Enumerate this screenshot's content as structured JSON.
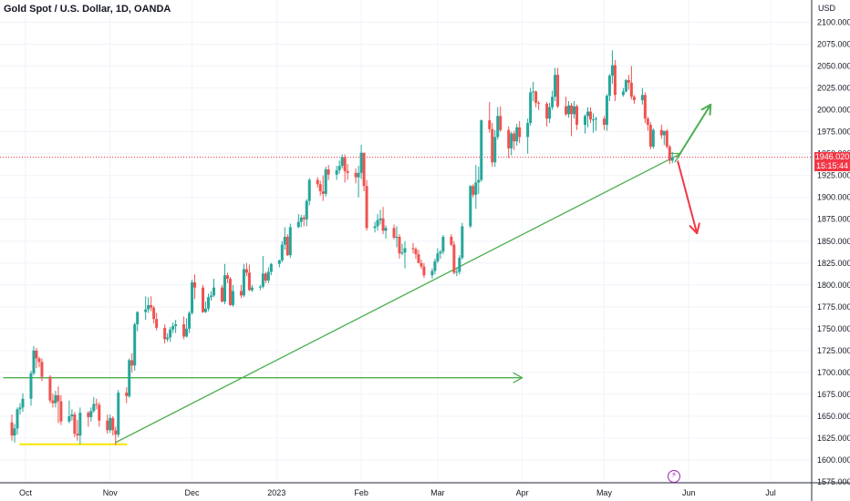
{
  "header": {
    "title": "Gold Spot / U.S. Dollar, 1D, OANDA",
    "currency": "USD"
  },
  "price_tag": {
    "price": "1946.020",
    "countdown": "15:15:44"
  },
  "event_icon": "lightning-icon",
  "colors": {
    "up": "#26a69a",
    "down": "#ef5350",
    "grid": "#f0f3fa",
    "trendline": "#4caf50",
    "yellow_line": "#f7e600",
    "bear_arrow": "#f23645",
    "price_line": "#f23645",
    "axis_text": "#131722"
  },
  "chart_data": {
    "type": "candlestick",
    "y_axis": {
      "label": "USD",
      "ylim": [
        1575,
        2125
      ],
      "position": "right",
      "ticks": [
        1575,
        1600,
        1625,
        1650,
        1675,
        1700,
        1725,
        1750,
        1775,
        1800,
        1825,
        1850,
        1875,
        1900,
        1925,
        1950,
        1975,
        2000,
        2025,
        2050,
        2075,
        2100
      ],
      "tick_labels": [
        "1575.000",
        "1600.000",
        "1625.000",
        "1650.000",
        "1675.000",
        "1700.000",
        "1725.000",
        "1750.000",
        "1775.000",
        "1800.000",
        "1825.000",
        "1850.000",
        "1875.000",
        "1900.000",
        "1925.000",
        "1950.000",
        "1975.000",
        "2000.000",
        "2025.000",
        "2050.000",
        "2075.000",
        "2100.000"
      ]
    },
    "x_axis": {
      "range": [
        "2022-09-26",
        "2023-07-20"
      ],
      "ticks": [
        {
          "date": "2022-10-01",
          "label": "Oct"
        },
        {
          "date": "2022-11-01",
          "label": "Nov"
        },
        {
          "date": "2022-12-01",
          "label": "Dec"
        },
        {
          "date": "2023-01-01",
          "label": "2023"
        },
        {
          "date": "2023-02-01",
          "label": "Feb"
        },
        {
          "date": "2023-03-01",
          "label": "Mar"
        },
        {
          "date": "2023-04-01",
          "label": "Apr"
        },
        {
          "date": "2023-05-01",
          "label": "May"
        },
        {
          "date": "2023-06-01",
          "label": "Jun"
        },
        {
          "date": "2023-07-01",
          "label": "Jul"
        }
      ]
    },
    "grid": true,
    "last_price": 1946.02,
    "candles": [
      [
        "2022-09-26",
        1643,
        1652,
        1622,
        1628
      ],
      [
        "2022-09-27",
        1628,
        1641,
        1620,
        1636
      ],
      [
        "2022-09-28",
        1636,
        1660,
        1629,
        1658
      ],
      [
        "2022-09-29",
        1658,
        1665,
        1652,
        1660
      ],
      [
        "2022-09-30",
        1660,
        1676,
        1655,
        1670
      ],
      [
        "2022-10-03",
        1670,
        1702,
        1662,
        1699
      ],
      [
        "2022-10-04",
        1699,
        1730,
        1697,
        1725
      ],
      [
        "2022-10-05",
        1725,
        1728,
        1705,
        1716
      ],
      [
        "2022-10-06",
        1716,
        1718,
        1706,
        1712
      ],
      [
        "2022-10-07",
        1712,
        1716,
        1690,
        1695
      ],
      [
        "2022-10-10",
        1695,
        1697,
        1665,
        1668
      ],
      [
        "2022-10-11",
        1668,
        1676,
        1660,
        1665
      ],
      [
        "2022-10-12",
        1665,
        1679,
        1660,
        1674
      ],
      [
        "2022-10-13",
        1674,
        1684,
        1642,
        1667
      ],
      [
        "2022-10-14",
        1667,
        1674,
        1640,
        1644
      ],
      [
        "2022-10-17",
        1644,
        1668,
        1642,
        1650
      ],
      [
        "2022-10-18",
        1650,
        1658,
        1645,
        1652
      ],
      [
        "2022-10-19",
        1652,
        1655,
        1626,
        1630
      ],
      [
        "2022-10-20",
        1630,
        1646,
        1622,
        1628
      ],
      [
        "2022-10-21",
        1628,
        1660,
        1618,
        1654
      ],
      [
        "2022-10-24",
        1654,
        1656,
        1638,
        1649
      ],
      [
        "2022-10-25",
        1649,
        1660,
        1644,
        1656
      ],
      [
        "2022-10-26",
        1656,
        1672,
        1654,
        1664
      ],
      [
        "2022-10-27",
        1664,
        1670,
        1658,
        1663
      ],
      [
        "2022-10-28",
        1663,
        1666,
        1638,
        1645
      ],
      [
        "2022-10-31",
        1645,
        1652,
        1630,
        1634
      ],
      [
        "2022-11-01",
        1634,
        1652,
        1631,
        1648
      ],
      [
        "2022-11-02",
        1648,
        1650,
        1628,
        1634
      ],
      [
        "2022-11-03",
        1634,
        1638,
        1617,
        1629
      ],
      [
        "2022-11-04",
        1629,
        1680,
        1626,
        1677
      ],
      [
        "2022-11-07",
        1677,
        1683,
        1665,
        1673
      ],
      [
        "2022-11-08",
        1673,
        1716,
        1671,
        1714
      ],
      [
        "2022-11-09",
        1714,
        1722,
        1700,
        1708
      ],
      [
        "2022-11-10",
        1708,
        1757,
        1702,
        1755
      ],
      [
        "2022-11-11",
        1755,
        1770,
        1747,
        1769
      ],
      [
        "2022-11-14",
        1769,
        1787,
        1760,
        1772
      ],
      [
        "2022-11-15",
        1772,
        1786,
        1768,
        1777
      ],
      [
        "2022-11-16",
        1777,
        1787,
        1770,
        1774
      ],
      [
        "2022-11-17",
        1774,
        1776,
        1756,
        1761
      ],
      [
        "2022-11-18",
        1761,
        1768,
        1748,
        1751
      ],
      [
        "2022-11-21",
        1751,
        1755,
        1733,
        1738
      ],
      [
        "2022-11-22",
        1738,
        1745,
        1735,
        1740
      ],
      [
        "2022-11-23",
        1740,
        1752,
        1735,
        1749
      ],
      [
        "2022-11-24",
        1749,
        1757,
        1745,
        1753
      ],
      [
        "2022-11-25",
        1753,
        1760,
        1745,
        1755
      ],
      [
        "2022-11-28",
        1755,
        1764,
        1738,
        1741
      ],
      [
        "2022-11-29",
        1741,
        1762,
        1740,
        1750
      ],
      [
        "2022-11-30",
        1750,
        1770,
        1745,
        1768
      ],
      [
        "2022-12-01",
        1768,
        1806,
        1766,
        1803
      ],
      [
        "2022-12-02",
        1803,
        1812,
        1784,
        1797
      ],
      [
        "2022-12-05",
        1797,
        1800,
        1768,
        1769
      ],
      [
        "2022-12-06",
        1769,
        1781,
        1768,
        1773
      ],
      [
        "2022-12-07",
        1773,
        1790,
        1770,
        1786
      ],
      [
        "2022-12-08",
        1786,
        1793,
        1782,
        1788
      ],
      [
        "2022-12-09",
        1788,
        1807,
        1786,
        1797
      ],
      [
        "2022-12-12",
        1797,
        1800,
        1780,
        1781
      ],
      [
        "2022-12-13",
        1781,
        1824,
        1778,
        1811
      ],
      [
        "2022-12-14",
        1811,
        1814,
        1802,
        1807
      ],
      [
        "2022-12-15",
        1807,
        1809,
        1776,
        1777
      ],
      [
        "2022-12-16",
        1777,
        1800,
        1775,
        1793
      ],
      [
        "2022-12-19",
        1793,
        1800,
        1785,
        1788
      ],
      [
        "2022-12-20",
        1788,
        1824,
        1786,
        1818
      ],
      [
        "2022-12-21",
        1818,
        1825,
        1810,
        1814
      ],
      [
        "2022-12-22",
        1814,
        1823,
        1793,
        1794
      ],
      [
        "2022-12-23",
        1794,
        1800,
        1792,
        1797
      ],
      [
        "2022-12-26",
        1797,
        1800,
        1794,
        1798
      ],
      [
        "2022-12-27",
        1798,
        1833,
        1796,
        1813
      ],
      [
        "2022-12-28",
        1813,
        1815,
        1802,
        1805
      ],
      [
        "2022-12-29",
        1805,
        1820,
        1802,
        1815
      ],
      [
        "2022-12-30",
        1815,
        1825,
        1811,
        1824
      ],
      [
        "2023-01-02",
        1824,
        1829,
        1820,
        1828
      ],
      [
        "2023-01-03",
        1828,
        1850,
        1826,
        1846
      ],
      [
        "2023-01-04",
        1846,
        1866,
        1840,
        1855
      ],
      [
        "2023-01-05",
        1855,
        1858,
        1833,
        1834
      ],
      [
        "2023-01-06",
        1834,
        1870,
        1831,
        1866
      ],
      [
        "2023-01-09",
        1866,
        1881,
        1865,
        1872
      ],
      [
        "2023-01-10",
        1872,
        1880,
        1866,
        1877
      ],
      [
        "2023-01-11",
        1877,
        1880,
        1867,
        1875
      ],
      [
        "2023-01-12",
        1875,
        1898,
        1867,
        1896
      ],
      [
        "2023-01-13",
        1896,
        1922,
        1891,
        1920
      ],
      [
        "2023-01-16",
        1920,
        1923,
        1911,
        1915
      ],
      [
        "2023-01-17",
        1915,
        1919,
        1902,
        1907
      ],
      [
        "2023-01-18",
        1907,
        1925,
        1896,
        1904
      ],
      [
        "2023-01-19",
        1904,
        1935,
        1901,
        1932
      ],
      [
        "2023-01-20",
        1932,
        1937,
        1920,
        1926
      ],
      [
        "2023-01-23",
        1926,
        1936,
        1920,
        1931
      ],
      [
        "2023-01-24",
        1931,
        1942,
        1927,
        1936
      ],
      [
        "2023-01-25",
        1936,
        1949,
        1933,
        1946
      ],
      [
        "2023-01-26",
        1946,
        1949,
        1917,
        1930
      ],
      [
        "2023-01-27",
        1930,
        1938,
        1920,
        1928
      ],
      [
        "2023-01-30",
        1928,
        1933,
        1916,
        1923
      ],
      [
        "2023-01-31",
        1923,
        1936,
        1900,
        1928
      ],
      [
        "2023-02-01",
        1928,
        1960,
        1921,
        1951
      ],
      [
        "2023-02-02",
        1951,
        1951,
        1907,
        1913
      ],
      [
        "2023-02-03",
        1913,
        1920,
        1862,
        1865
      ],
      [
        "2023-02-06",
        1865,
        1872,
        1860,
        1867
      ],
      [
        "2023-02-07",
        1867,
        1881,
        1862,
        1874
      ],
      [
        "2023-02-08",
        1874,
        1886,
        1869,
        1876
      ],
      [
        "2023-02-09",
        1876,
        1889,
        1858,
        1862
      ],
      [
        "2023-02-10",
        1862,
        1868,
        1853,
        1865
      ],
      [
        "2023-02-13",
        1865,
        1869,
        1852,
        1854
      ],
      [
        "2023-02-14",
        1854,
        1867,
        1843,
        1855
      ],
      [
        "2023-02-15",
        1855,
        1858,
        1830,
        1836
      ],
      [
        "2023-02-16",
        1836,
        1847,
        1834,
        1837
      ],
      [
        "2023-02-17",
        1837,
        1850,
        1819,
        1842
      ],
      [
        "2023-02-20",
        1842,
        1848,
        1836,
        1841
      ],
      [
        "2023-02-21",
        1841,
        1843,
        1830,
        1835
      ],
      [
        "2023-02-22",
        1835,
        1840,
        1825,
        1825
      ],
      [
        "2023-02-23",
        1825,
        1829,
        1818,
        1821
      ],
      [
        "2023-02-24",
        1821,
        1825,
        1808,
        1811
      ],
      [
        "2023-02-27",
        1811,
        1819,
        1807,
        1816
      ],
      [
        "2023-02-28",
        1816,
        1830,
        1812,
        1827
      ],
      [
        "2023-03-01",
        1827,
        1842,
        1825,
        1836
      ],
      [
        "2023-03-02",
        1836,
        1840,
        1830,
        1838
      ],
      [
        "2023-03-03",
        1838,
        1857,
        1835,
        1855
      ],
      [
        "2023-03-06",
        1855,
        1858,
        1844,
        1846
      ],
      [
        "2023-03-07",
        1846,
        1850,
        1812,
        1814
      ],
      [
        "2023-03-08",
        1814,
        1820,
        1810,
        1815
      ],
      [
        "2023-03-09",
        1815,
        1834,
        1812,
        1831
      ],
      [
        "2023-03-10",
        1831,
        1871,
        1829,
        1867
      ],
      [
        "2023-03-13",
        1867,
        1914,
        1865,
        1913
      ],
      [
        "2023-03-14",
        1913,
        1915,
        1900,
        1903
      ],
      [
        "2023-03-15",
        1903,
        1937,
        1887,
        1917
      ],
      [
        "2023-03-16",
        1917,
        1935,
        1904,
        1920
      ],
      [
        "2023-03-17",
        1920,
        1989,
        1918,
        1988
      ],
      [
        "2023-03-20",
        1988,
        2009,
        1974,
        1978
      ],
      [
        "2023-03-21",
        1978,
        1985,
        1935,
        1940
      ],
      [
        "2023-03-22",
        1940,
        1977,
        1935,
        1969
      ],
      [
        "2023-03-23",
        1969,
        2003,
        1966,
        1993
      ],
      [
        "2023-03-24",
        1993,
        2004,
        1975,
        1977
      ],
      [
        "2023-03-27",
        1977,
        1981,
        1945,
        1956
      ],
      [
        "2023-03-28",
        1956,
        1975,
        1948,
        1973
      ],
      [
        "2023-03-29",
        1973,
        1976,
        1954,
        1964
      ],
      [
        "2023-03-30",
        1964,
        1984,
        1959,
        1980
      ],
      [
        "2023-03-31",
        1980,
        1987,
        1962,
        1969
      ],
      [
        "2023-04-03",
        1969,
        1990,
        1950,
        1985
      ],
      [
        "2023-04-04",
        1985,
        2025,
        1982,
        2020
      ],
      [
        "2023-04-05",
        2020,
        2032,
        2010,
        2021
      ],
      [
        "2023-04-06",
        2021,
        2022,
        2003,
        2008
      ],
      [
        "2023-04-07",
        2008,
        2010,
        2000,
        2007
      ],
      [
        "2023-04-10",
        2007,
        2009,
        1981,
        1990
      ],
      [
        "2023-04-11",
        1990,
        2008,
        1985,
        2003
      ],
      [
        "2023-04-12",
        2003,
        2022,
        2000,
        2015
      ],
      [
        "2023-04-13",
        2015,
        2048,
        2010,
        2040
      ],
      [
        "2023-04-14",
        2040,
        2048,
        2002,
        2004
      ],
      [
        "2023-04-17",
        2004,
        2015,
        1993,
        1995
      ],
      [
        "2023-04-18",
        1995,
        2010,
        1991,
        2005
      ],
      [
        "2023-04-19",
        2005,
        2008,
        1970,
        1995
      ],
      [
        "2023-04-20",
        1995,
        2010,
        1990,
        2004
      ],
      [
        "2023-04-21",
        2004,
        2006,
        1977,
        1983
      ],
      [
        "2023-04-24",
        1983,
        1995,
        1973,
        1993
      ],
      [
        "2023-04-25",
        1993,
        2003,
        1980,
        1998
      ],
      [
        "2023-04-26",
        1998,
        2003,
        1985,
        1989
      ],
      [
        "2023-04-27",
        1989,
        1996,
        1974,
        1989
      ],
      [
        "2023-04-28",
        1989,
        1992,
        1976,
        1990
      ],
      [
        "2023-05-01",
        1990,
        1993,
        1977,
        1983
      ],
      [
        "2023-05-02",
        1983,
        2018,
        1976,
        2016
      ],
      [
        "2023-05-03",
        2016,
        2041,
        2010,
        2039
      ],
      [
        "2023-05-04",
        2039,
        2068,
        2030,
        2051
      ],
      [
        "2023-05-05",
        2051,
        2057,
        2010,
        2017
      ],
      [
        "2023-05-08",
        2017,
        2025,
        2015,
        2021
      ],
      [
        "2023-05-09",
        2021,
        2035,
        2020,
        2034
      ],
      [
        "2023-05-10",
        2034,
        2040,
        2023,
        2031
      ],
      [
        "2023-05-11",
        2031,
        2050,
        2012,
        2015
      ],
      [
        "2023-05-12",
        2015,
        2017,
        2007,
        2011
      ],
      [
        "2023-05-15",
        2011,
        2025,
        2006,
        2017
      ],
      [
        "2023-05-16",
        2017,
        2020,
        1985,
        1990
      ],
      [
        "2023-05-17",
        1990,
        1992,
        1976,
        1983
      ],
      [
        "2023-05-18",
        1983,
        1986,
        1955,
        1958
      ],
      [
        "2023-05-19",
        1958,
        1979,
        1956,
        1977
      ],
      [
        "2023-05-22",
        1977,
        1983,
        1967,
        1971
      ],
      [
        "2023-05-23",
        1971,
        1976,
        1960,
        1976
      ],
      [
        "2023-05-24",
        1976,
        1978,
        1956,
        1958
      ],
      [
        "2023-05-25",
        1958,
        1960,
        1938,
        1942
      ],
      [
        "2023-05-26",
        1942,
        1952,
        1939,
        1946
      ]
    ]
  },
  "drawings": {
    "support_line": {
      "from": [
        "2022-09-23",
        1694
      ],
      "to": [
        "2023-04-01",
        1694
      ]
    },
    "yellow_line": {
      "from": [
        "2022-09-29",
        1618
      ],
      "to": [
        "2022-11-07",
        1618
      ]
    },
    "trendline": {
      "from": [
        "2022-11-03",
        1620
      ],
      "to": [
        "2023-05-29",
        1950
      ]
    },
    "bull_arrow": {
      "from": [
        "2023-05-28",
        1946
      ],
      "to": [
        "2023-06-09",
        2006
      ]
    },
    "bear_arrow": {
      "from": [
        "2023-05-28",
        1941
      ],
      "to": [
        "2023-06-04",
        1859
      ]
    }
  }
}
